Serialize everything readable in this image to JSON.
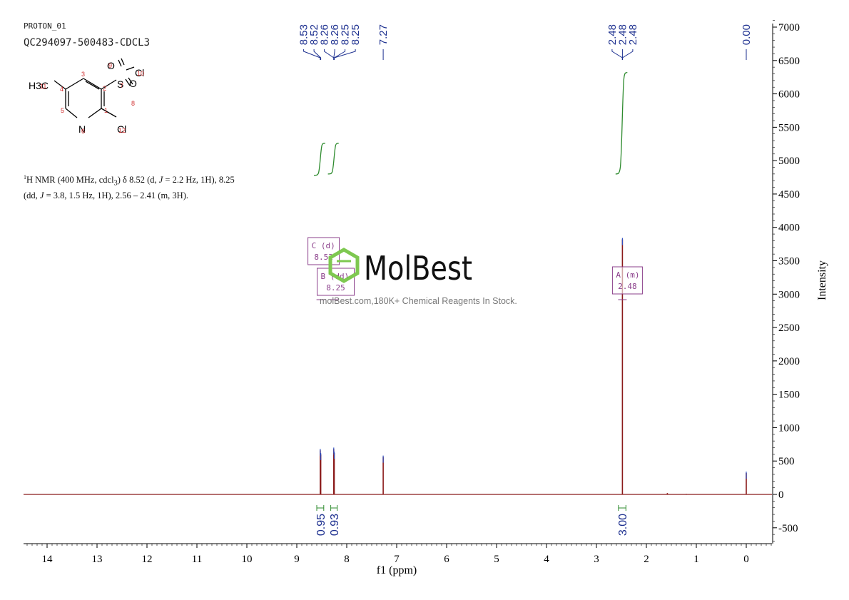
{
  "experiment_id": "PROTON_01",
  "sample_name": "QC294097-500483-CDCL3",
  "nmr_summary": {
    "nucleus_sup": "1",
    "line1_a": "H NMR (400 MHz, cdcl",
    "line1_sub": "3",
    "line1_b": ") δ 8.52 (d, ",
    "j": "J",
    "line1_c": " = 2.2 Hz, 1H), 8.25",
    "line2_a": "(dd, ",
    "line2_b": " = 3.8, 1.5 Hz, 1H), 2.56 – 2.41 (m, 3H)."
  },
  "watermark": {
    "brand": "MolBest",
    "tagline": "molBest.com,180K+ Chemical Reagents In Stock."
  },
  "molecule": {
    "atoms": [
      {
        "symbol": "C",
        "label": "H3C",
        "number": "11"
      },
      {
        "symbol": "C",
        "number": "4"
      },
      {
        "symbol": "C",
        "number": "3"
      },
      {
        "symbol": "C",
        "number": "2"
      },
      {
        "symbol": "C",
        "number": "1"
      },
      {
        "symbol": "N",
        "number": "6"
      },
      {
        "symbol": "C",
        "number": "5"
      },
      {
        "symbol": "S",
        "number": "7"
      },
      {
        "symbol": "O",
        "number": "9"
      },
      {
        "symbol": "O",
        "number": "8"
      },
      {
        "symbol": "Cl",
        "number": "10"
      },
      {
        "symbol": "Cl",
        "number": "12"
      }
    ]
  },
  "colors": {
    "spectrum": "#8b1a1a",
    "integral": "#2e8b2e",
    "peak_label": "#1c2f8f",
    "multiplet_box": "#8b3f8b",
    "atom_number": "#d03030",
    "watermark_green": "#7ec850"
  },
  "chart_data": {
    "type": "line",
    "xlabel": "f1 (ppm)",
    "ylabel": "Intensity",
    "xlim": [
      14.5,
      -0.5
    ],
    "ylim": [
      -700,
      7100
    ],
    "x_reversed": true,
    "x_ticks": [
      "14",
      "13",
      "12",
      "11",
      "10",
      "9",
      "8",
      "7",
      "6",
      "5",
      "4",
      "3",
      "2",
      "1",
      "0"
    ],
    "y_ticks": [
      "7000",
      "6500",
      "6000",
      "5500",
      "5000",
      "4500",
      "4000",
      "3500",
      "3000",
      "2500",
      "2000",
      "1500",
      "1000",
      "500",
      "0",
      "-500"
    ],
    "peaks": [
      {
        "ppm": 8.53,
        "height": 660
      },
      {
        "ppm": 8.52,
        "height": 600
      },
      {
        "ppm": 8.26,
        "height": 680
      },
      {
        "ppm": 8.25,
        "height": 620
      },
      {
        "ppm": 7.27,
        "height": 560
      },
      {
        "ppm": 2.48,
        "height": 3820
      },
      {
        "ppm": 0.0,
        "height": 320
      },
      {
        "ppm": 1.58,
        "height": 20
      },
      {
        "ppm": 1.2,
        "height": 8
      }
    ],
    "peak_labels": [
      {
        "group": "a",
        "ppm": 8.53,
        "label": "8.53"
      },
      {
        "group": "a",
        "ppm": 8.52,
        "label": "8.52"
      },
      {
        "group": "a",
        "ppm": 8.26,
        "label": "8.26"
      },
      {
        "group": "a",
        "ppm": 8.26,
        "label": "8.26"
      },
      {
        "group": "a",
        "ppm": 8.25,
        "label": "8.25"
      },
      {
        "group": "a",
        "ppm": 8.25,
        "label": "8.25"
      },
      {
        "group": "b",
        "ppm": 7.27,
        "label": "7.27"
      },
      {
        "group": "c",
        "ppm": 2.48,
        "label": "2.48"
      },
      {
        "group": "c",
        "ppm": 2.48,
        "label": "2.48"
      },
      {
        "group": "c",
        "ppm": 2.48,
        "label": "2.48"
      },
      {
        "group": "d",
        "ppm": 0.0,
        "label": "0.00"
      }
    ],
    "integrals": [
      {
        "from": 8.6,
        "to": 8.46,
        "value": "0.95",
        "curve_low": 4780,
        "curve_high": 5260
      },
      {
        "from": 8.32,
        "to": 8.19,
        "value": "0.93",
        "curve_low": 4800,
        "curve_high": 5260
      },
      {
        "from": 2.56,
        "to": 2.41,
        "value": "3.00",
        "curve_low": 4800,
        "curve_high": 6320
      }
    ],
    "multiplets": [
      {
        "letter": "C",
        "type": "(d)",
        "shift": "8.52",
        "anchor_ppm": 8.52
      },
      {
        "letter": "B",
        "type": "(dd)",
        "shift": "8.25",
        "anchor_ppm": 8.25
      },
      {
        "letter": "A",
        "type": "(m)",
        "shift": "2.48",
        "anchor_ppm": 2.48
      }
    ]
  }
}
